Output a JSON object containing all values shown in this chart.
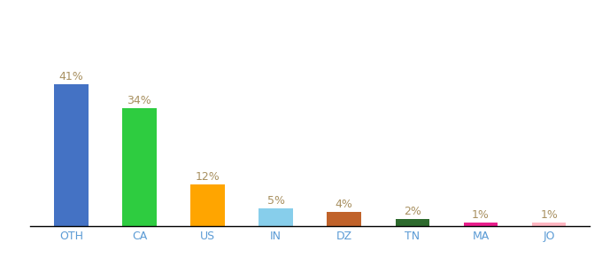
{
  "categories": [
    "OTH",
    "CA",
    "US",
    "IN",
    "DZ",
    "TN",
    "MA",
    "JO"
  ],
  "values": [
    41,
    34,
    12,
    5,
    4,
    2,
    1,
    1
  ],
  "bar_colors": [
    "#4472C4",
    "#2ECC40",
    "#FFA500",
    "#87CEEB",
    "#C0622A",
    "#2D6A2D",
    "#E91E8C",
    "#FFB6C1"
  ],
  "label_color": "#A89060",
  "ylim": [
    0,
    56
  ],
  "background_color": "#ffffff",
  "label_fontsize": 9,
  "tick_fontsize": 9,
  "tick_color": "#5B9BD5",
  "bar_width": 0.5
}
